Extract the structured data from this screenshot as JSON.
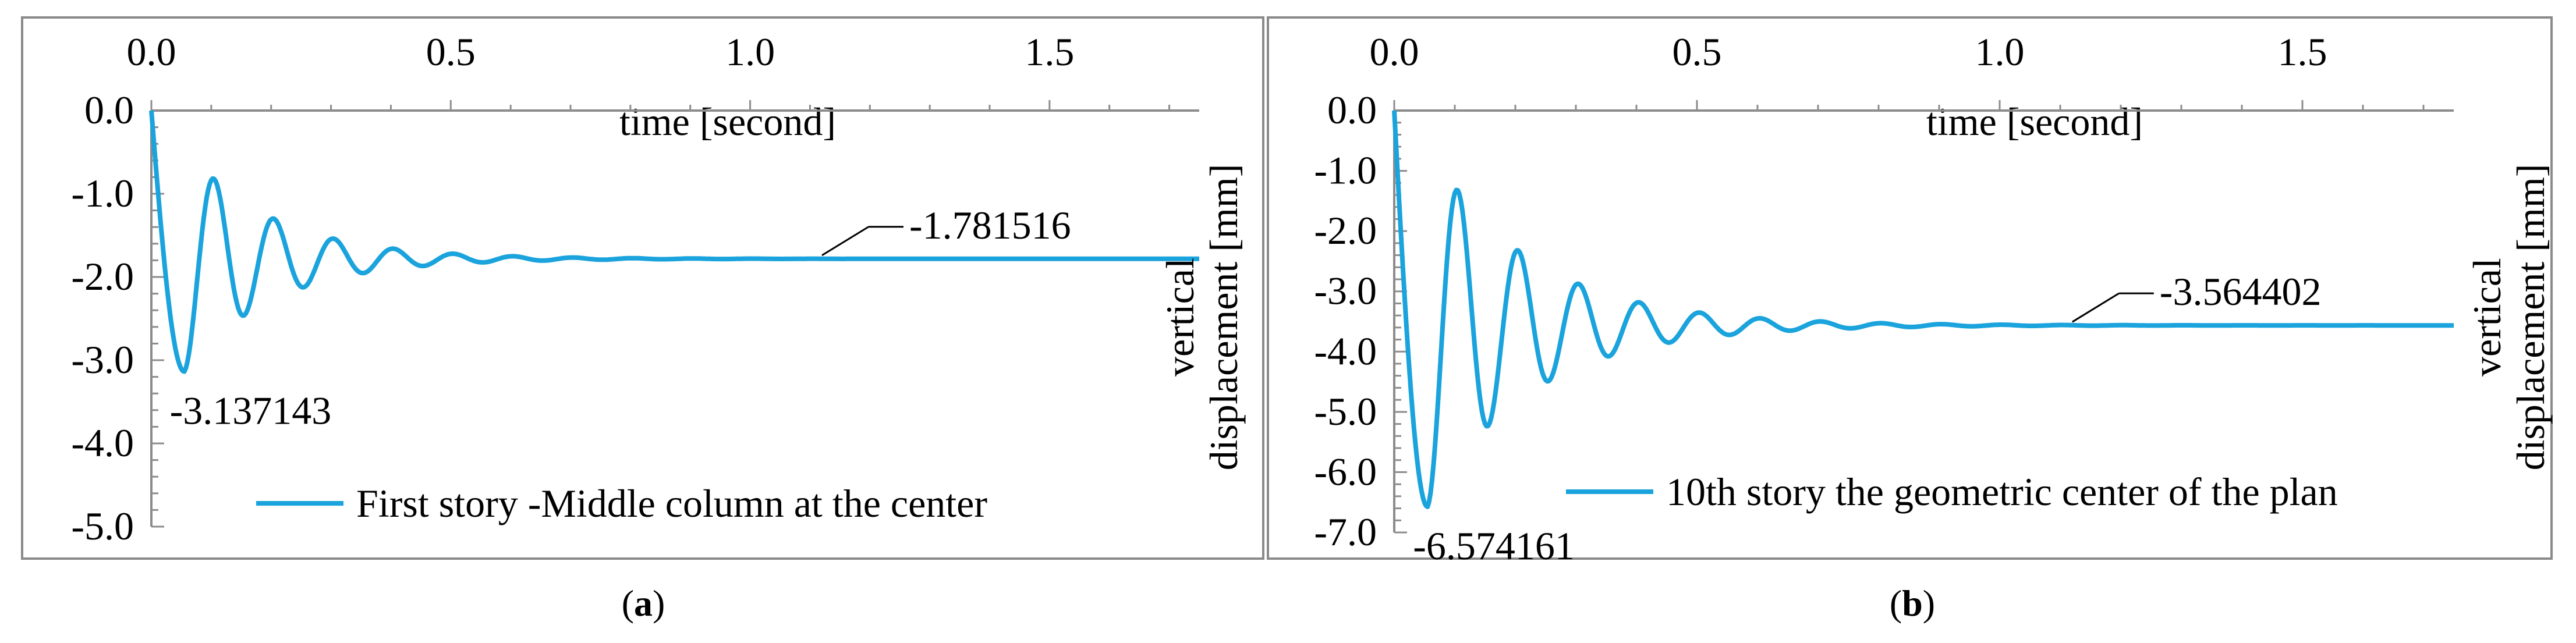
{
  "chart_data": [
    {
      "type": "line",
      "caption_letter": "a",
      "xlabel": "time [second]",
      "ylabel_line1": "",
      "ylabel_line2": "",
      "xlim": [
        0,
        1.75
      ],
      "ylim": [
        -5.0,
        0.0
      ],
      "x_ticks": [
        "0.0",
        "0.5",
        "1.0",
        "1.5"
      ],
      "y_ticks": [
        "0.0",
        "-1.0",
        "-2.0",
        "-3.0",
        "-4.0",
        "-5.0"
      ],
      "series": [
        {
          "name": "First story -Middle column at the center",
          "color": "#1aa3dc",
          "model": {
            "final": -1.781516,
            "min_value": -3.137143,
            "min_time": 0.055,
            "period": 0.1,
            "decay": 6.9,
            "end": 1.75
          }
        }
      ],
      "annotations": [
        {
          "text": "-3.137143",
          "x": 0.055,
          "y": -3.137143
        },
        {
          "text": "-1.781516",
          "x": 1.12,
          "y": -1.781516
        }
      ],
      "grid": false,
      "legend_position": "bottom"
    },
    {
      "type": "line",
      "caption_letter": "b",
      "xlabel": "time [second]",
      "ylabel_line1": "vertical",
      "ylabel_line2": "displacement [mm]",
      "xlim": [
        0,
        1.75
      ],
      "ylim": [
        -7.0,
        0.0
      ],
      "x_ticks": [
        "0.0",
        "0.5",
        "1.0",
        "1.5"
      ],
      "y_ticks": [
        "0.0",
        "-1.0",
        "-2.0",
        "-3.0",
        "-4.0",
        "-5.0",
        "-6.0",
        "-7.0"
      ],
      "series": [
        {
          "name": "10th story the geometric center of the plan",
          "color": "#1aa3dc",
          "model": {
            "final": -3.564402,
            "min_value": -6.574161,
            "min_time": 0.055,
            "period": 0.1,
            "decay": 5.9,
            "end": 1.75
          }
        }
      ],
      "annotations": [
        {
          "text": "-6.574161",
          "x": 0.055,
          "y": -6.574161
        },
        {
          "text": "-3.564402",
          "x": 1.12,
          "y": -3.564402
        }
      ],
      "grid": false,
      "legend_position": "bottom"
    }
  ],
  "middle_axis_title": {
    "line1": "vertical",
    "line2": "displacement [mm]"
  }
}
